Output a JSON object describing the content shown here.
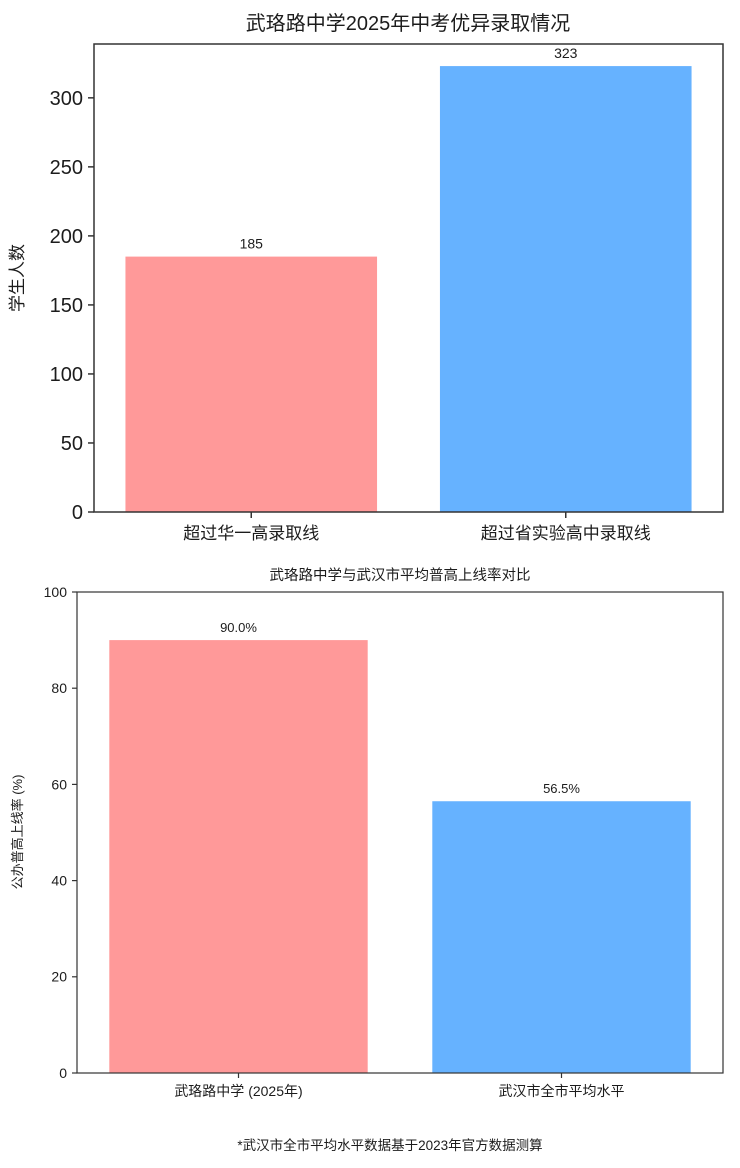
{
  "page": {
    "background": "#ffffff"
  },
  "footnote": "*武汉市全市平均水平数据基于2023年官方数据测算",
  "colors": {
    "bar_pink": "#ff9999",
    "bar_blue": "#66b2ff",
    "axis": "#333333",
    "text": "#1c1c1c",
    "footnote_text": "#3d3d3d"
  },
  "chart_data": [
    {
      "type": "bar",
      "title": "武珞路中学2025年中考优异录取情况",
      "xlabel": "",
      "ylabel": "学生人数",
      "categories": [
        "超过华一高录取线",
        "超过省实验高中录取线"
      ],
      "values": [
        185,
        323
      ],
      "value_labels": [
        "185",
        "323"
      ],
      "bar_colors": [
        "#ff9999",
        "#66b2ff"
      ],
      "ylim": [
        0,
        339
      ],
      "yticks": [
        0,
        50,
        100,
        150,
        200,
        250,
        300
      ],
      "grid": false,
      "legend": null
    },
    {
      "type": "bar",
      "title": "武珞路中学与武汉市平均普高上线率对比",
      "xlabel": "",
      "ylabel": "公办普高上线率 (%)",
      "categories": [
        "武珞路中学 (2025年)",
        "武汉市全市平均水平"
      ],
      "values": [
        90.0,
        56.5
      ],
      "value_labels": [
        "90.0%",
        "56.5%"
      ],
      "bar_colors": [
        "#ff9999",
        "#66b2ff"
      ],
      "ylim": [
        0,
        100
      ],
      "yticks": [
        0,
        20,
        40,
        60,
        80,
        100
      ],
      "grid": false,
      "legend": null
    }
  ]
}
